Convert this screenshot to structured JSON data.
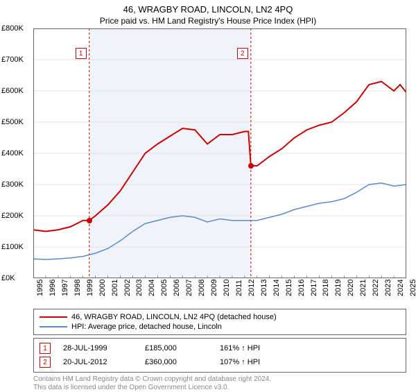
{
  "title": "46, WRAGBY ROAD, LINCOLN, LN2 4PQ",
  "subtitle": "Price paid vs. HM Land Registry's House Price Index (HPI)",
  "chart": {
    "type": "line",
    "background_color": "#ffffff",
    "grid_color": "#cccccc",
    "shade_color": "#f0f4fa",
    "plot_border_color": "#666666",
    "y": {
      "min": 0,
      "max": 800000,
      "step": 100000,
      "prefix": "£",
      "suffix": "K",
      "divisor": 1000,
      "label_fontsize": 11
    },
    "x": {
      "min": 1995,
      "max": 2025,
      "step": 1,
      "label_fontsize": 11
    },
    "series": [
      {
        "key": "property",
        "color": "#cc0000",
        "width": 2,
        "points": [
          [
            1995,
            155000
          ],
          [
            1996,
            150000
          ],
          [
            1997,
            155000
          ],
          [
            1998,
            165000
          ],
          [
            1999,
            185000
          ],
          [
            1999.5,
            185000
          ],
          [
            2000,
            200000
          ],
          [
            2001,
            235000
          ],
          [
            2002,
            280000
          ],
          [
            2003,
            340000
          ],
          [
            2004,
            400000
          ],
          [
            2005,
            430000
          ],
          [
            2006,
            455000
          ],
          [
            2007,
            480000
          ],
          [
            2008,
            475000
          ],
          [
            2009,
            430000
          ],
          [
            2010,
            460000
          ],
          [
            2011,
            460000
          ],
          [
            2012,
            470000
          ],
          [
            2012.3,
            470000
          ],
          [
            2012.5,
            360000
          ],
          [
            2013,
            360000
          ],
          [
            2014,
            390000
          ],
          [
            2015,
            415000
          ],
          [
            2016,
            450000
          ],
          [
            2017,
            475000
          ],
          [
            2018,
            490000
          ],
          [
            2019,
            500000
          ],
          [
            2020,
            530000
          ],
          [
            2021,
            565000
          ],
          [
            2022,
            620000
          ],
          [
            2023,
            630000
          ],
          [
            2024,
            600000
          ],
          [
            2024.5,
            620000
          ],
          [
            2025,
            595000
          ]
        ]
      },
      {
        "key": "hpi",
        "color": "#5b8bc6",
        "width": 1.5,
        "points": [
          [
            1995,
            62000
          ],
          [
            1996,
            60000
          ],
          [
            1997,
            62000
          ],
          [
            1998,
            65000
          ],
          [
            1999,
            70000
          ],
          [
            2000,
            80000
          ],
          [
            2001,
            95000
          ],
          [
            2002,
            120000
          ],
          [
            2003,
            150000
          ],
          [
            2004,
            175000
          ],
          [
            2005,
            185000
          ],
          [
            2006,
            195000
          ],
          [
            2007,
            200000
          ],
          [
            2008,
            195000
          ],
          [
            2009,
            180000
          ],
          [
            2010,
            190000
          ],
          [
            2011,
            185000
          ],
          [
            2012,
            185000
          ],
          [
            2013,
            185000
          ],
          [
            2014,
            195000
          ],
          [
            2015,
            205000
          ],
          [
            2016,
            220000
          ],
          [
            2017,
            230000
          ],
          [
            2018,
            240000
          ],
          [
            2019,
            245000
          ],
          [
            2020,
            255000
          ],
          [
            2021,
            275000
          ],
          [
            2022,
            300000
          ],
          [
            2023,
            305000
          ],
          [
            2024,
            295000
          ],
          [
            2025,
            300000
          ]
        ]
      }
    ],
    "sale_markers": [
      {
        "n": "1",
        "x": 1999.5,
        "y": 185000,
        "color": "#cc0000"
      },
      {
        "n": "2",
        "x": 2012.5,
        "y": 360000,
        "color": "#cc0000"
      }
    ],
    "vlines": [
      {
        "x": 1999.5,
        "color": "#cc0000"
      },
      {
        "x": 2012.5,
        "color": "#cc0000"
      }
    ],
    "shade": {
      "from": 1999.5,
      "to": 2012.5
    }
  },
  "legend": {
    "items": [
      {
        "color": "#cc0000",
        "label": "46, WRAGBY ROAD, LINCOLN, LN2 4PQ (detached house)"
      },
      {
        "color": "#5b8bc6",
        "label": "HPI: Average price, detached house, Lincoln"
      }
    ]
  },
  "sales": [
    {
      "n": "1",
      "date": "28-JUL-1999",
      "price": "£185,000",
      "delta": "161% ↑ HPI"
    },
    {
      "n": "2",
      "date": "20-JUL-2012",
      "price": "£360,000",
      "delta": "107% ↑ HPI"
    }
  ],
  "footnote_l1": "Contains HM Land Registry data © Crown copyright and database right 2024.",
  "footnote_l2": "This data is licensed under the Open Government Licence v3.0."
}
